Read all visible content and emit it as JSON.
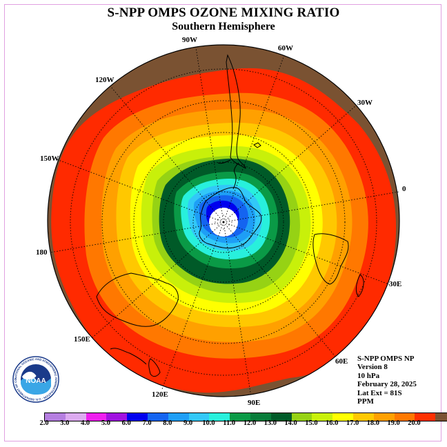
{
  "title": "S-NPP OMPS OZONE MIXING RATIO",
  "subtitle": "Southern Hemisphere",
  "longitude_labels": {
    "w90": "90W",
    "w60": "60W",
    "w30": "30W",
    "e0": "0",
    "e30": "30E",
    "e60": "60E",
    "e90": "90E",
    "e120": "120E",
    "e150": "150E",
    "d180": "180",
    "w150": "150W",
    "w120": "120W"
  },
  "info": {
    "instrument": "S-NPP OMPS NP",
    "version": "Version 8",
    "pressure": "10 hPa",
    "date": "February 28, 2025",
    "lat_ext": "Lat Ext = 81S",
    "units": "PPM"
  },
  "logo": {
    "text": "NOAA",
    "ring_text": "NATIONAL OCEANIC AND ATMOSPHERIC ADMINISTRATION · U.S. DEPARTMENT OF COMMERCE"
  },
  "colorbar": {
    "colors": [
      "#b57ee0",
      "#dcaaf0",
      "#ee1eee",
      "#a010e0",
      "#0000ee",
      "#1464f0",
      "#1e9ef6",
      "#32c8f8",
      "#28f0dc",
      "#0a9a46",
      "#087c3a",
      "#005a28",
      "#96d214",
      "#c8f00a",
      "#ffff00",
      "#ffc800",
      "#ffa000",
      "#ff7800",
      "#ff3000",
      "#7a5232"
    ],
    "ticks": [
      "2.0",
      "3.0",
      "4.0",
      "5.0",
      "6.0",
      "7.0",
      "8.0",
      "9.0",
      "10.0",
      "11.0",
      "12.0",
      "13.0",
      "14.0",
      "15.0",
      "16.0",
      "17.0",
      "18.0",
      "19.0",
      "20.0"
    ]
  },
  "map": {
    "projection": "south polar stereographic",
    "outer_latitude": "0",
    "polar_cap_latitude": "81S",
    "gridline_style": "dotted"
  }
}
